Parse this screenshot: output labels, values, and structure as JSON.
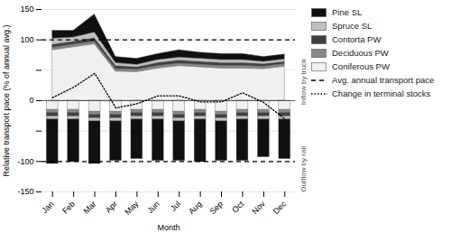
{
  "chart_data": {
    "type": "bar",
    "stacked": true,
    "xlabel": "Month",
    "ylabel": "Relative transport pace (% of annual avg.)",
    "categories": [
      "Jan",
      "Feb",
      "Mar",
      "Apr",
      "May",
      "Jun",
      "Jul",
      "Aug",
      "Sep",
      "Oct",
      "Nov",
      "Dec"
    ],
    "ylim": [
      -150,
      150
    ],
    "yticks": [
      -150,
      -100,
      {
        "value": -50,
        "label": null
      },
      0,
      {
        "value": 50,
        "label": null
      },
      100,
      150
    ],
    "grid": true,
    "legend": "right",
    "series": [
      {
        "name": "Coniferous PW",
        "type": "area",
        "color": "#f0f0f0",
        "values": [
          83,
          88,
          93,
          48,
          47,
          53,
          57,
          55,
          53,
          53,
          52,
          56
        ]
      },
      {
        "name": "Deciduous PW",
        "type": "area",
        "color": "#888888",
        "values": [
          4,
          4,
          4,
          4,
          4,
          4,
          4,
          4,
          4,
          4,
          4,
          4
        ]
      },
      {
        "name": "Contorta PW",
        "type": "area",
        "color": "#404040",
        "values": [
          5,
          5,
          6,
          5,
          4,
          5,
          5,
          5,
          5,
          5,
          4,
          4
        ]
      },
      {
        "name": "Spruce SL",
        "type": "area",
        "color": "#c0c0c0",
        "values": [
          10,
          7,
          9,
          5,
          4,
          5,
          5,
          5,
          5,
          5,
          4,
          4
        ]
      },
      {
        "name": "Pine SL",
        "type": "area",
        "color": "#101010",
        "values": [
          13,
          11,
          30,
          10,
          10,
          10,
          12,
          10,
          10,
          10,
          8,
          8
        ]
      },
      {
        "name": "Coniferous PW",
        "type": "bar",
        "color": "#f0f0f0",
        "values": [
          -15,
          -15,
          -18,
          -18,
          -15,
          -15,
          -18,
          -15,
          -18,
          -15,
          -15,
          -15
        ]
      },
      {
        "name": "Deciduous PW",
        "type": "bar",
        "color": "#888888",
        "values": [
          -5,
          -5,
          -5,
          -5,
          -5,
          -5,
          -5,
          -5,
          -5,
          -5,
          -5,
          -5
        ]
      },
      {
        "name": "Contorta PW",
        "type": "bar",
        "color": "#404040",
        "values": [
          -6,
          -6,
          -6,
          -6,
          -6,
          -6,
          -6,
          -6,
          -6,
          -6,
          -6,
          -6
        ]
      },
      {
        "name": "Spruce SL",
        "type": "bar",
        "color": "#c0c0c0",
        "values": [
          -5,
          -5,
          -5,
          -5,
          -5,
          -5,
          -5,
          -5,
          -5,
          -5,
          -5,
          -5
        ]
      },
      {
        "name": "Pine SL",
        "type": "bar",
        "color": "#101010",
        "values": [
          -73,
          -70,
          -70,
          -65,
          -65,
          -68,
          -65,
          -70,
          -65,
          -68,
          -62,
          -65
        ]
      },
      {
        "name": "Change in terminal stocks",
        "type": "line",
        "line_style": "dotted",
        "color": "#000000",
        "values": [
          5,
          22,
          45,
          -12,
          -5,
          8,
          8,
          -2,
          -2,
          13,
          -3,
          -30
        ]
      }
    ],
    "avg_lines": {
      "name": "Avg. annual transport pace",
      "line_style": "dashed",
      "color": "#000000",
      "values": [
        100,
        -100
      ]
    },
    "annotations": [
      "Inflow by truck",
      "Outflow by rail"
    ]
  }
}
